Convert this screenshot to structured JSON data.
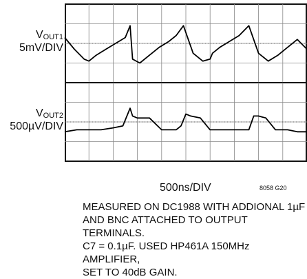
{
  "chart_data": [
    {
      "type": "line",
      "ylabel_main": "V",
      "ylabel_sub": "OUT1",
      "ylabel_scale": "5mV/DIV",
      "xlabel": "500ns/DIV",
      "grid": true,
      "divisions": {
        "x": 10,
        "y": 4
      },
      "series": [
        {
          "x": [
            0,
            0.4,
            0.8,
            1.0,
            1.3,
            1.7,
            2.1,
            2.5,
            2.7,
            2.8,
            3.1,
            3.5,
            3.9,
            4.3,
            4.6,
            4.9,
            5.3,
            5.7,
            6.0,
            6.1,
            6.4,
            6.8,
            7.2,
            7.6,
            8.0,
            8.4,
            8.8,
            9.2,
            9.6,
            10
          ],
          "y": [
            0.3,
            -0.3,
            -0.8,
            -0.9,
            -0.6,
            -0.3,
            0,
            0.3,
            0.9,
            -0.8,
            -1.0,
            -0.6,
            -0.2,
            0.1,
            0.4,
            0.9,
            -0.5,
            -0.9,
            -0.8,
            -0.5,
            -0.2,
            0.1,
            0.4,
            0.9,
            -0.5,
            -0.9,
            -0.6,
            -0.2,
            0.2,
            -0.3
          ]
        }
      ]
    },
    {
      "type": "line",
      "ylabel_main": "V",
      "ylabel_sub": "OUT2",
      "ylabel_scale": "500µV/DIV",
      "xlabel": "500ns/DIV",
      "grid": true,
      "divisions": {
        "x": 10,
        "y": 4
      },
      "series": [
        {
          "x": [
            0,
            0.5,
            1.0,
            1.5,
            2.0,
            2.4,
            2.6,
            2.7,
            2.8,
            3.0,
            3.5,
            4.0,
            4.6,
            4.8,
            5.0,
            5.2,
            5.6,
            6.0,
            6.5,
            7.0,
            7.6,
            7.8,
            8.0,
            8.3,
            8.7,
            9.2,
            9.6,
            10
          ],
          "y": [
            -0.5,
            -0.4,
            -0.4,
            -0.4,
            -0.3,
            -0.2,
            0.4,
            0.7,
            0.3,
            0.2,
            0.2,
            -0.4,
            -0.4,
            -0.2,
            0.4,
            0.3,
            0.2,
            -0.4,
            -0.4,
            -0.4,
            -0.4,
            0.3,
            0.3,
            0.2,
            -0.4,
            -0.4,
            -0.5,
            -0.5
          ]
        }
      ]
    }
  ],
  "figure_id": "8058 G20",
  "caption": [
    "MEASURED ON DC1988 WITH ADDIONAL 1µF",
    "AND BNC ATTACHED TO OUTPUT TERMINALS.",
    "C7 = 0.1µF. USED HP461A 150MHz AMPLIFIER,",
    "SET TO 40dB GAIN."
  ]
}
